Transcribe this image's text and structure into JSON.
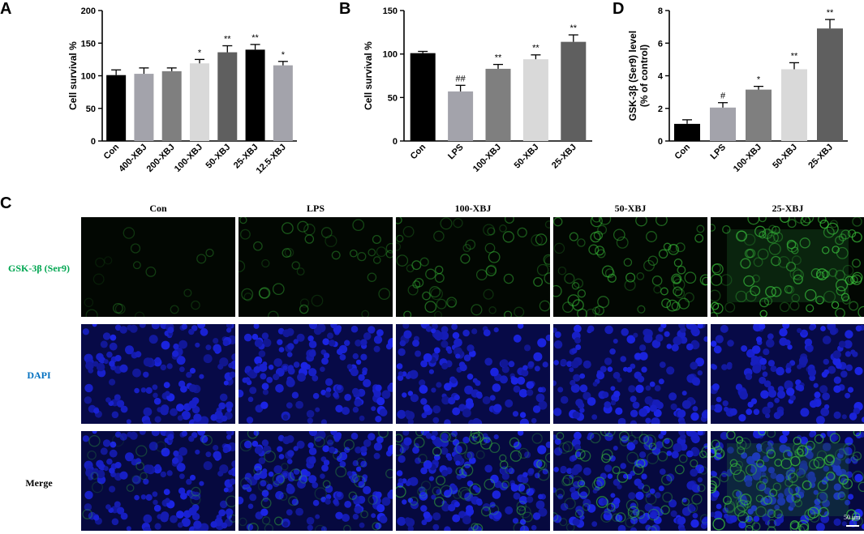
{
  "panels": {
    "A": "A",
    "B": "B",
    "C": "C",
    "D": "D"
  },
  "chart_data": [
    {
      "id": "A",
      "type": "bar",
      "ylabel": "Cell survival %",
      "ylim": [
        0,
        200
      ],
      "yticks": [
        0,
        50,
        100,
        150,
        200
      ],
      "categories": [
        "Con",
        "400-XBJ",
        "200-XBJ",
        "100-XBJ",
        "50-XBJ",
        "25-XBJ",
        "12.5-XBJ"
      ],
      "values": [
        101,
        103,
        107,
        119,
        136,
        140,
        116
      ],
      "errors": [
        8,
        9,
        5,
        6,
        10,
        8,
        6
      ],
      "annotations": [
        "",
        "",
        "",
        "*",
        "**",
        "**",
        "*"
      ],
      "colors": [
        "#000000",
        "#a3a3ab",
        "#7f7f7f",
        "#d9d9d9",
        "#5f5f5f",
        "#000000",
        "#a3a3ab"
      ]
    },
    {
      "id": "B",
      "type": "bar",
      "ylabel": "Cell survival %",
      "ylim": [
        0,
        150
      ],
      "yticks": [
        0,
        50,
        100,
        150
      ],
      "categories": [
        "Con",
        "LPS",
        "100-XBJ",
        "50-XBJ",
        "25-XBJ"
      ],
      "values": [
        101,
        57,
        83,
        94,
        114
      ],
      "errors": [
        2,
        7,
        5,
        5,
        8
      ],
      "annotations": [
        "",
        "##",
        "**",
        "**",
        "**"
      ],
      "colors": [
        "#000000",
        "#a3a3ab",
        "#7f7f7f",
        "#d9d9d9",
        "#5f5f5f"
      ]
    },
    {
      "id": "D",
      "type": "bar",
      "ylabel": "GSK-3β (Ser9) level\n(% of control)",
      "ylabel_lines": [
        "GSK-3β (Ser9) level",
        "(% of control)"
      ],
      "ylim": [
        0,
        8
      ],
      "yticks": [
        0,
        2,
        4,
        6,
        8
      ],
      "categories": [
        "Con",
        "LPS",
        "100-XBJ",
        "50-XBJ",
        "25-XBJ"
      ],
      "values": [
        1.05,
        2.05,
        3.15,
        4.4,
        6.9
      ],
      "errors": [
        0.25,
        0.3,
        0.2,
        0.4,
        0.55
      ],
      "annotations": [
        "",
        "#",
        "*",
        "**",
        "**"
      ],
      "colors": [
        "#000000",
        "#a3a3ab",
        "#7f7f7f",
        "#d9d9d9",
        "#5f5f5f"
      ]
    }
  ],
  "micrograph": {
    "columns": [
      "Con",
      "LPS",
      "100-XBJ",
      "50-XBJ",
      "25-XBJ"
    ],
    "rows": [
      {
        "label": "GSK-3β (Ser9)",
        "color": "#00a651",
        "kind": "green"
      },
      {
        "label": "DAPI",
        "color": "#0070c0",
        "kind": "blue"
      },
      {
        "label": "Merge",
        "color": "#000000",
        "kind": "merge"
      }
    ],
    "green_intensity": [
      0.08,
      0.3,
      0.5,
      0.65,
      1.0
    ],
    "scale_bar_label": "50 μm"
  }
}
